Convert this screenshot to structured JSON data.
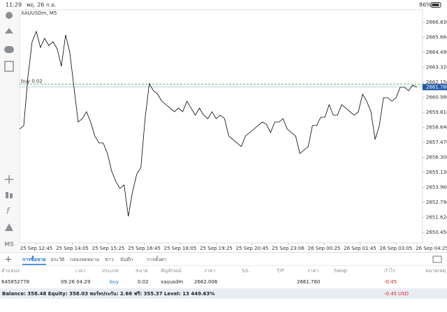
{
  "status_bar": {
    "time": "11:29",
    "date": "พฤ. 26 ก.ย.",
    "battery": "86%"
  },
  "chart": {
    "type": "line",
    "symbol_label": "XAUUSDm, M5",
    "color": "#000000",
    "ylim": [
      2649.63,
      2667.81
    ],
    "yticks": [
      {
        "value": 2666.83,
        "label": "2666.830"
      },
      {
        "value": 2665.66,
        "label": "2665.660"
      },
      {
        "value": 2664.49,
        "label": "2664.490"
      },
      {
        "value": 2663.32,
        "label": "2663.320"
      },
      {
        "value": 2662.15,
        "label": "2662.150"
      },
      {
        "value": 2660.98,
        "label": "2660.980"
      },
      {
        "value": 2659.81,
        "label": "2659.810"
      },
      {
        "value": 2658.64,
        "label": "2658.640"
      },
      {
        "value": 2657.47,
        "label": "2657.470"
      },
      {
        "value": 2656.3,
        "label": "2656.300"
      },
      {
        "value": 2655.13,
        "label": "2655.130"
      },
      {
        "value": 2653.96,
        "label": "2653.960"
      },
      {
        "value": 2652.79,
        "label": "2652.790"
      },
      {
        "value": 2651.62,
        "label": "2651.620"
      },
      {
        "value": 2650.45,
        "label": "2650.450"
      }
    ],
    "x_labels": [
      "25 Sep 12:45",
      "25 Sep 14:05",
      "25 Sep 15:25",
      "25 Sep 16:45",
      "25 Sep 18:05",
      "25 Sep 19:25",
      "25 Sep 20:45",
      "25 Sep 23:06",
      "26 Sep 00:25",
      "26 Sep 01:45",
      "26 Sep 03:05",
      "26 Sep 04:25"
    ],
    "values": [
      2658.5,
      2658.78,
      2662.59,
      2665.31,
      2666.12,
      2664.87,
      2665.58,
      2665.03,
      2665.31,
      2664.76,
      2663.4,
      2665.85,
      2664.49,
      2661.77,
      2659.05,
      2659.32,
      2659.86,
      2659.05,
      2657.96,
      2657.42,
      2657.42,
      2656.6,
      2655.24,
      2654.42,
      2653.88,
      2654.15,
      2651.7,
      2653.61,
      2654.97,
      2655.51,
      2659.32,
      2662.04,
      2661.5,
      2661.23,
      2660.68,
      2660.41,
      2660.14,
      2659.86,
      2660.14,
      2659.86,
      2660.68,
      2660.14,
      2659.59,
      2660.14,
      2659.59,
      2659.32,
      2659.86,
      2659.32,
      2659.59,
      2659.32,
      2657.96,
      2657.69,
      2657.42,
      2657.14,
      2657.96,
      2658.23,
      2658.5,
      2658.78,
      2659.05,
      2658.89,
      2658.23,
      2659.05,
      2659.05,
      2659.32,
      2658.5,
      2658.23,
      2657.96,
      2656.6,
      2656.87,
      2657.14,
      2658.78,
      2658.78,
      2659.43,
      2659.43,
      2660.41,
      2659.59,
      2659.59,
      2660.41,
      2660.14,
      2659.86,
      2659.59,
      2659.86,
      2661.23,
      2660.68,
      2659.86,
      2657.69,
      2658.78,
      2660.95,
      2660.95,
      2660.68,
      2660.95,
      2661.77,
      2661.77,
      2661.5,
      2661.93,
      2661.78
    ],
    "position_line": {
      "label": "buy 0.02",
      "value": 2662.006,
      "color": "#3a9a4a"
    },
    "bid": {
      "value": 2661.78,
      "label": "2661.780",
      "color": "#1e5aa8"
    }
  },
  "toolbar": {
    "timeframe": "M5"
  },
  "tabs": [
    "การซื้อขาย",
    "ประวัติ",
    "กล่องจดหมาย",
    "ข่าว",
    "บันทึก",
    "การตั้งค่า"
  ],
  "active_tab": 0,
  "table": {
    "headers": [
      "ตำแหน่ง",
      "เวลา",
      "ประเภท",
      "ขนาด",
      "สัญลักษณ์",
      "ราคา",
      "S/L",
      "T/P",
      "ราคา",
      "Swap",
      "กำไร",
      "หมายเหตุ"
    ],
    "row": {
      "ticket": "645852778",
      "time": "09.26 04:29",
      "type": "buy",
      "volume": "0.02",
      "symbol": "xauusdm",
      "open_price": "2662.006",
      "price": "2661.780",
      "profit": "-0.45"
    }
  },
  "summary": {
    "text": "Balance: 358.48 Equity: 358.03 พอร์ทประกัน: 2.66 ฟรี: 355.37 Level: 13 449.63%",
    "profit": "-0.45",
    "currency": "USD"
  }
}
